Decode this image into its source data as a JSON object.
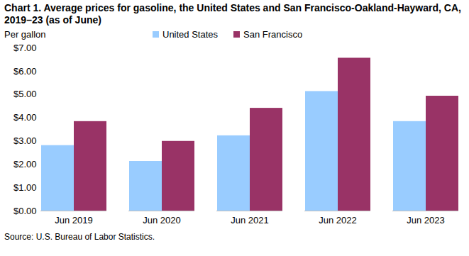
{
  "chart_data": {
    "type": "bar",
    "title": "Chart 1. Average prices for gasoline, the United States and San Francisco-Oakland-Hayward, CA, 2019–23 (as of June)",
    "y_label": "Per gallon",
    "caption": "Source: U.S. Bureau of Labor Statistics.",
    "categories": [
      "Jun 2019",
      "Jun 2020",
      "Jun 2021",
      "Jun 2022",
      "Jun 2023"
    ],
    "series": [
      {
        "name": "United States",
        "color": "#99ccff",
        "values": [
          2.81,
          2.13,
          3.23,
          5.13,
          3.84
        ]
      },
      {
        "name": "San Francisco",
        "color": "#993366",
        "values": [
          3.84,
          2.99,
          4.41,
          6.56,
          4.93
        ]
      }
    ],
    "ylim": [
      0,
      7
    ],
    "yticks": [
      {
        "value": 0,
        "label": "$0.00"
      },
      {
        "value": 1,
        "label": "$1.00"
      },
      {
        "value": 2,
        "label": "$2.00"
      },
      {
        "value": 3,
        "label": "$3.00"
      },
      {
        "value": 4,
        "label": "$4.00"
      },
      {
        "value": 5,
        "label": "$5.00"
      },
      {
        "value": 6,
        "label": "$6.00"
      },
      {
        "value": 7,
        "label": "$7.00"
      }
    ],
    "grid": false,
    "legend": "top"
  }
}
